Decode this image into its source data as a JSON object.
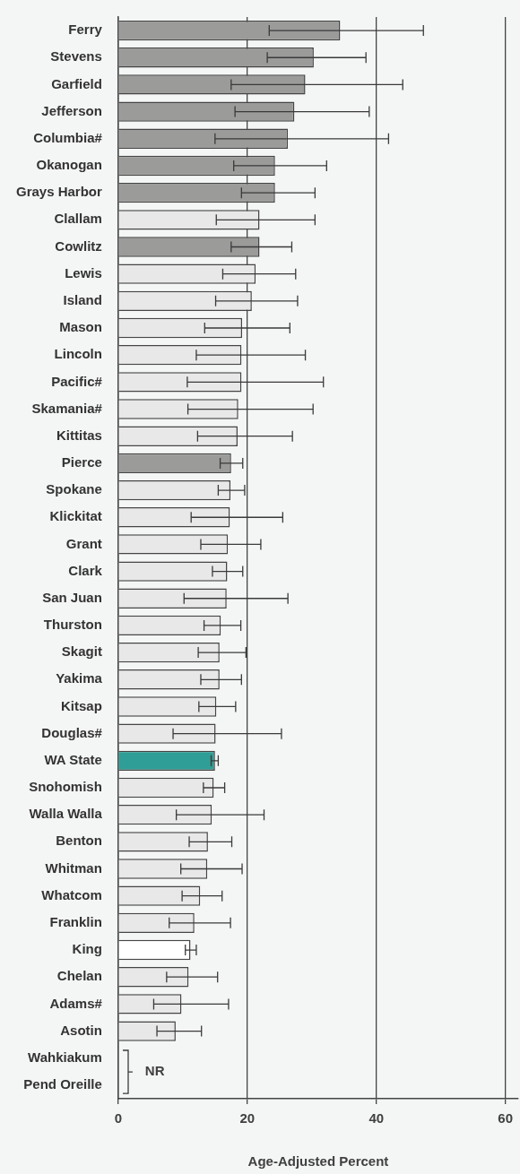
{
  "chart_data": {
    "type": "bar",
    "orientation": "horizontal",
    "xlabel": "Age-Adjusted Percent",
    "categories": [
      "Ferry",
      "Stevens",
      "Garfield",
      "Jefferson",
      "Columbia#",
      "Okanogan",
      "Grays Harbor",
      "Clallam",
      "Cowlitz",
      "Lewis",
      "Island",
      "Mason",
      "Lincoln",
      "Pacific#",
      "Skamania#",
      "Kittitas",
      "Pierce",
      "Spokane",
      "Klickitat",
      "Grant",
      "Clark",
      "San Juan",
      "Thurston",
      "Skagit",
      "Yakima",
      "Kitsap",
      "Douglas#",
      "WA State",
      "Snohomish",
      "Walla Walla",
      "Benton",
      "Whitman",
      "Whatcom",
      "Franklin",
      "King",
      "Chelan",
      "Adams#",
      "Asotin",
      "Wahkiakum",
      "Pend Oreille"
    ],
    "values": [
      34.4,
      30.3,
      29.0,
      27.3,
      26.3,
      24.3,
      24.3,
      21.9,
      21.9,
      21.3,
      20.7,
      19.2,
      19.1,
      19.1,
      18.6,
      18.5,
      17.5,
      17.4,
      17.3,
      17.0,
      16.9,
      16.8,
      15.9,
      15.7,
      15.7,
      15.2,
      15.1,
      15.0,
      14.8,
      14.5,
      13.9,
      13.8,
      12.7,
      11.8,
      11.2,
      10.9,
      9.8,
      8.9,
      null,
      null
    ],
    "errors": [
      [
        23.4,
        47.3
      ],
      [
        23.1,
        38.4
      ],
      [
        17.5,
        44.1
      ],
      [
        18.1,
        38.9
      ],
      [
        15.0,
        41.9
      ],
      [
        17.9,
        32.3
      ],
      [
        19.1,
        30.5
      ],
      [
        15.2,
        30.5
      ],
      [
        17.5,
        26.9
      ],
      [
        16.2,
        27.5
      ],
      [
        15.1,
        27.8
      ],
      [
        13.4,
        26.6
      ],
      [
        12.1,
        29.0
      ],
      [
        10.7,
        31.8
      ],
      [
        10.8,
        30.2
      ],
      [
        12.3,
        27.0
      ],
      [
        15.8,
        19.3
      ],
      [
        15.5,
        19.6
      ],
      [
        11.3,
        25.5
      ],
      [
        12.8,
        22.1
      ],
      [
        14.6,
        19.3
      ],
      [
        10.2,
        26.3
      ],
      [
        13.3,
        19.0
      ],
      [
        12.4,
        19.8
      ],
      [
        12.8,
        19.1
      ],
      [
        12.5,
        18.2
      ],
      [
        8.5,
        25.3
      ],
      [
        14.4,
        15.5
      ],
      [
        13.2,
        16.5
      ],
      [
        9.0,
        22.6
      ],
      [
        11.0,
        17.6
      ],
      [
        9.7,
        19.2
      ],
      [
        9.9,
        16.1
      ],
      [
        7.9,
        17.4
      ],
      [
        10.4,
        12.1
      ],
      [
        7.5,
        15.4
      ],
      [
        5.5,
        17.1
      ],
      [
        6.0,
        12.9
      ],
      null,
      null
    ],
    "colors": [
      "#9b9b9a",
      "#9b9b9a",
      "#9b9b9a",
      "#9b9b9a",
      "#9b9b9a",
      "#9b9b9a",
      "#9b9b9a",
      "#e8e8e8",
      "#9b9b9a",
      "#e8e8e8",
      "#e8e8e8",
      "#e8e8e8",
      "#e8e8e8",
      "#e8e8e8",
      "#e8e8e8",
      "#e8e8e8",
      "#9b9b9a",
      "#e8e8e8",
      "#e8e8e8",
      "#e8e8e8",
      "#e8e8e8",
      "#e8e8e8",
      "#e8e8e8",
      "#e8e8e8",
      "#e8e8e8",
      "#e8e8e8",
      "#e8e8e8",
      "#2e9e96",
      "#e8e8e8",
      "#e8e8e8",
      "#e8e8e8",
      "#e8e8e8",
      "#e8e8e8",
      "#e8e8e8",
      "#ffffff",
      "#e8e8e8",
      "#e8e8e8",
      "#e8e8e8",
      "#e8e8e8",
      "#e8e8e8"
    ],
    "xlim": [
      0,
      62
    ],
    "xticks": [
      0,
      20,
      40,
      60
    ],
    "grid": "x",
    "legend": false,
    "annotations": [
      "NR"
    ]
  }
}
